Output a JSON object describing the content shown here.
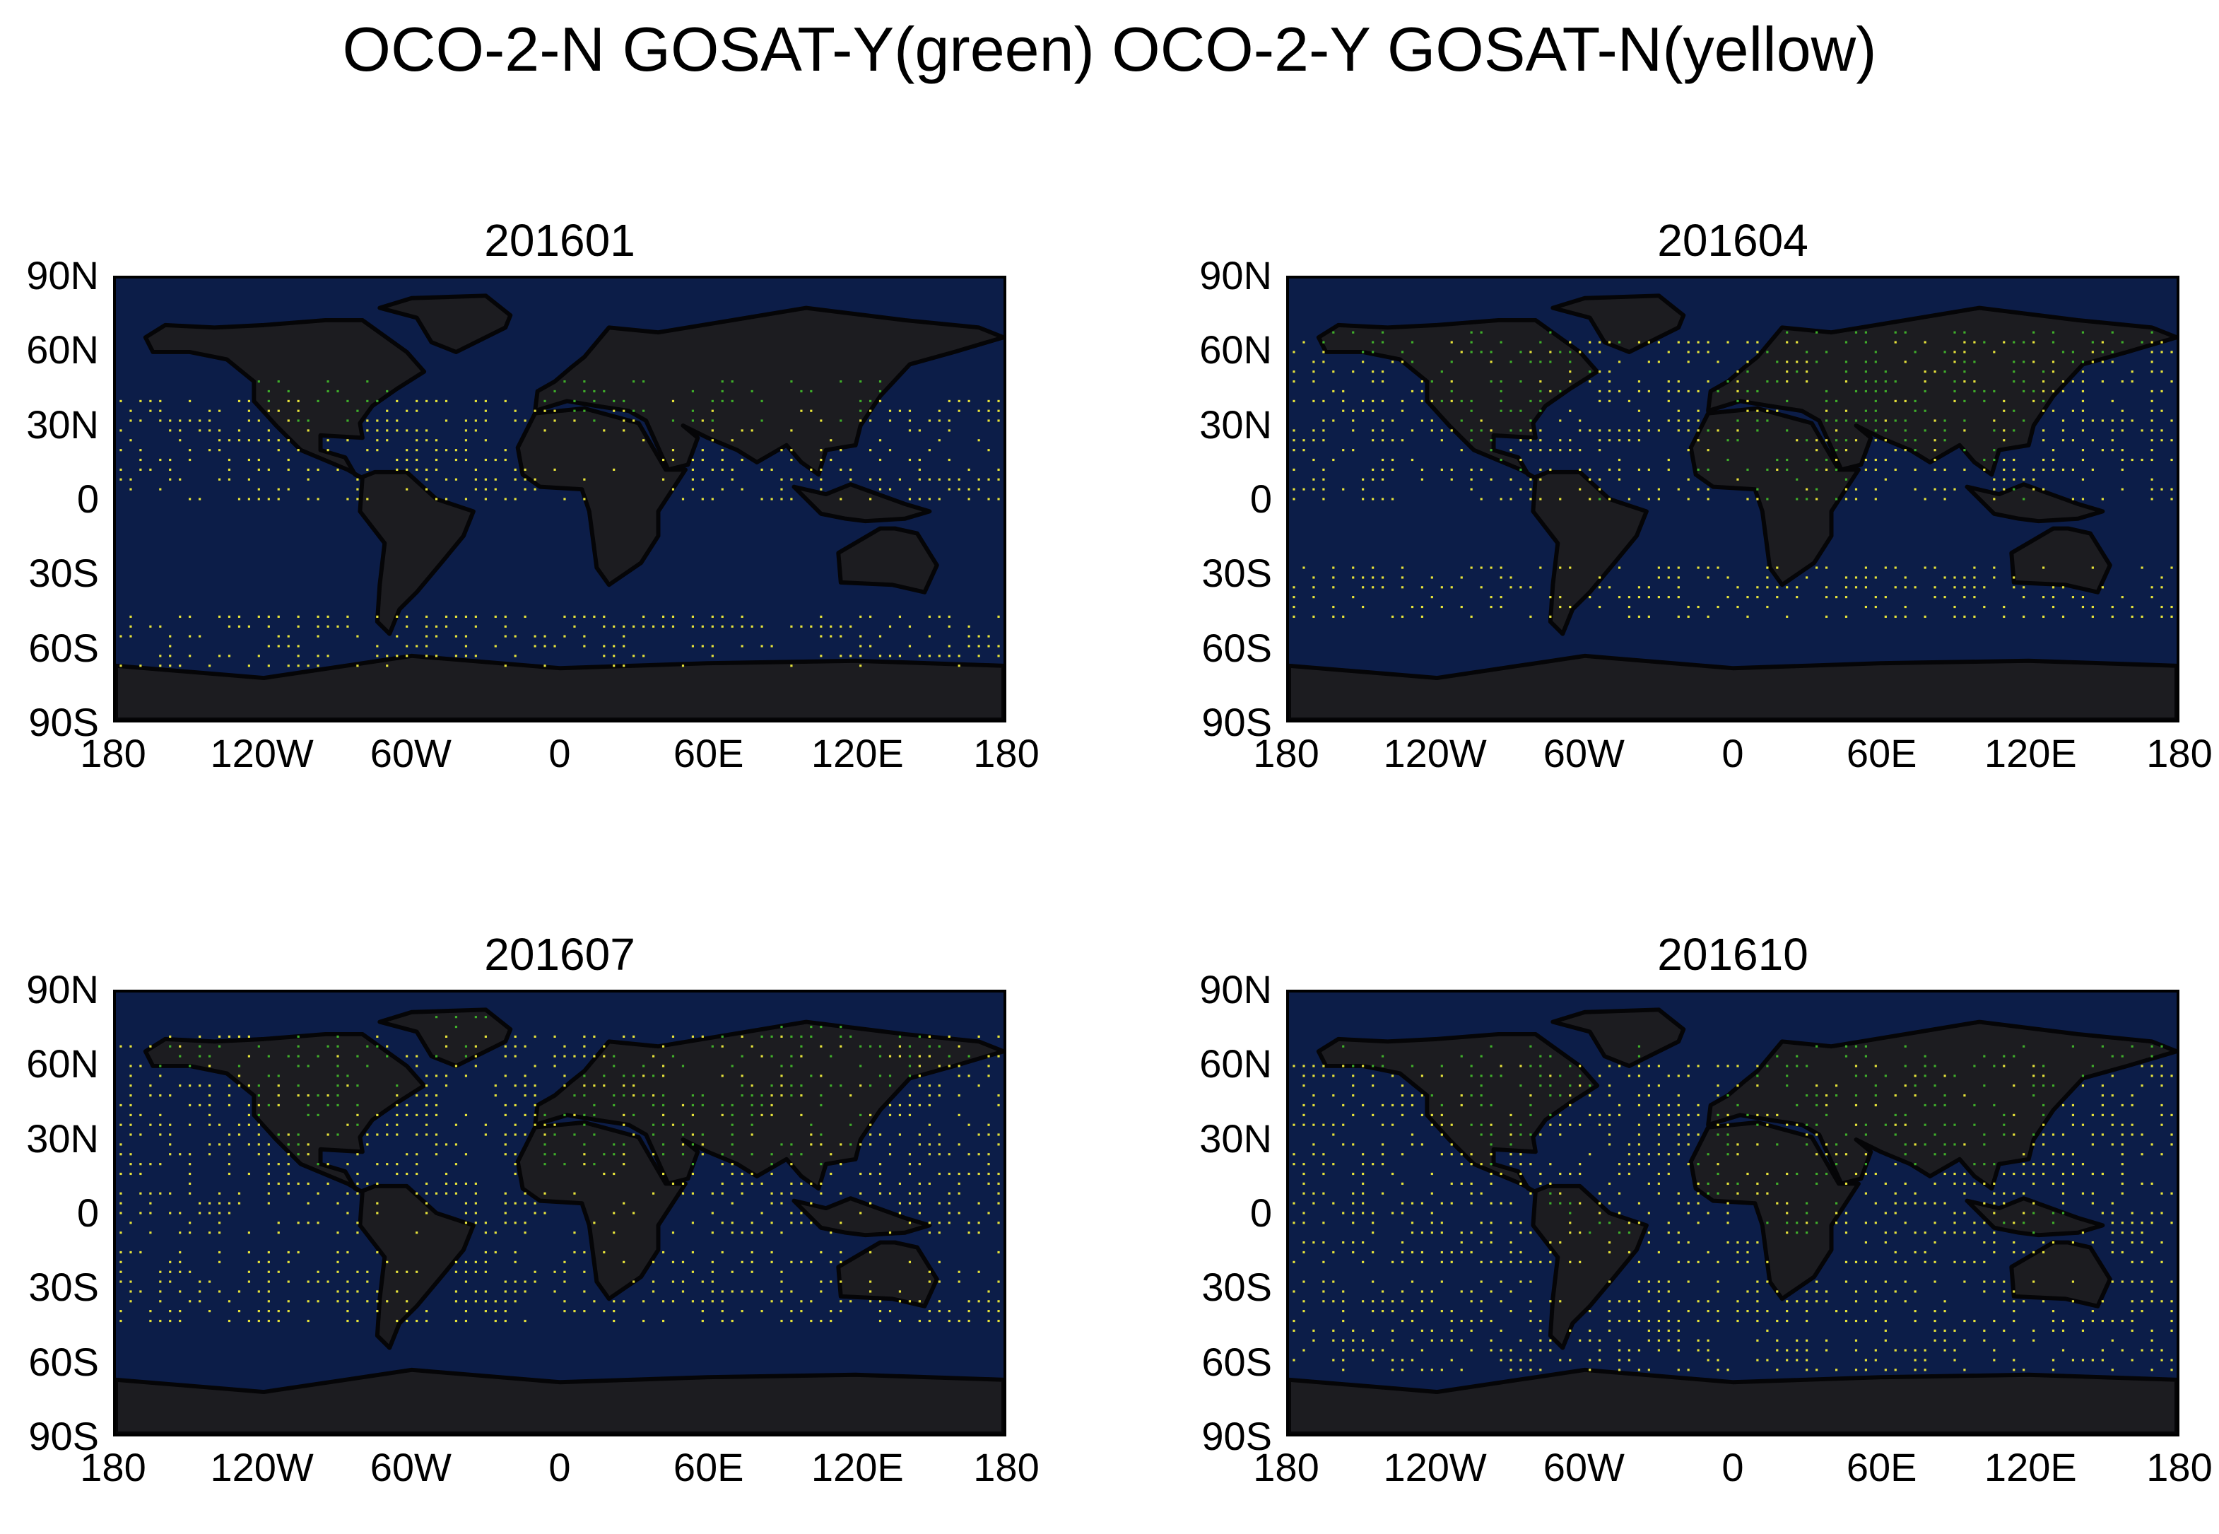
{
  "title": "OCO-2-N GOSAT-Y(green) OCO-2-Y GOSAT-N(yellow)",
  "colors": {
    "land": "#1c1c20",
    "ocean": "#0c1d48",
    "coast": "#050507",
    "oco2_no_gosat_yes": "#3fae2a",
    "oco2_yes_gosat_no": "#e8e43a"
  },
  "axes": {
    "y_ticks": [
      "90N",
      "60N",
      "30N",
      "0",
      "30S",
      "60S",
      "90S"
    ],
    "x_ticks": [
      "180",
      "120W",
      "60W",
      "0",
      "60E",
      "120E",
      "180"
    ]
  },
  "panels": [
    {
      "title": "201601",
      "green_lat": [
        30,
        50
      ],
      "yellow_bands": [
        [
          -70,
          -45
        ],
        [
          0,
          40
        ]
      ],
      "density": 0.45
    },
    {
      "title": "201604",
      "green_lat": [
        0,
        70
      ],
      "yellow_bands": [
        [
          -50,
          -25
        ],
        [
          0,
          65
        ]
      ],
      "density": 0.45
    },
    {
      "title": "201607",
      "green_lat": [
        20,
        80
      ],
      "yellow_bands": [
        [
          -45,
          -15
        ],
        [
          -10,
          75
        ]
      ],
      "density": 0.45
    },
    {
      "title": "201610",
      "green_lat": [
        -10,
        70
      ],
      "yellow_bands": [
        [
          -65,
          -25
        ],
        [
          -20,
          60
        ]
      ],
      "density": 0.45
    }
  ]
}
